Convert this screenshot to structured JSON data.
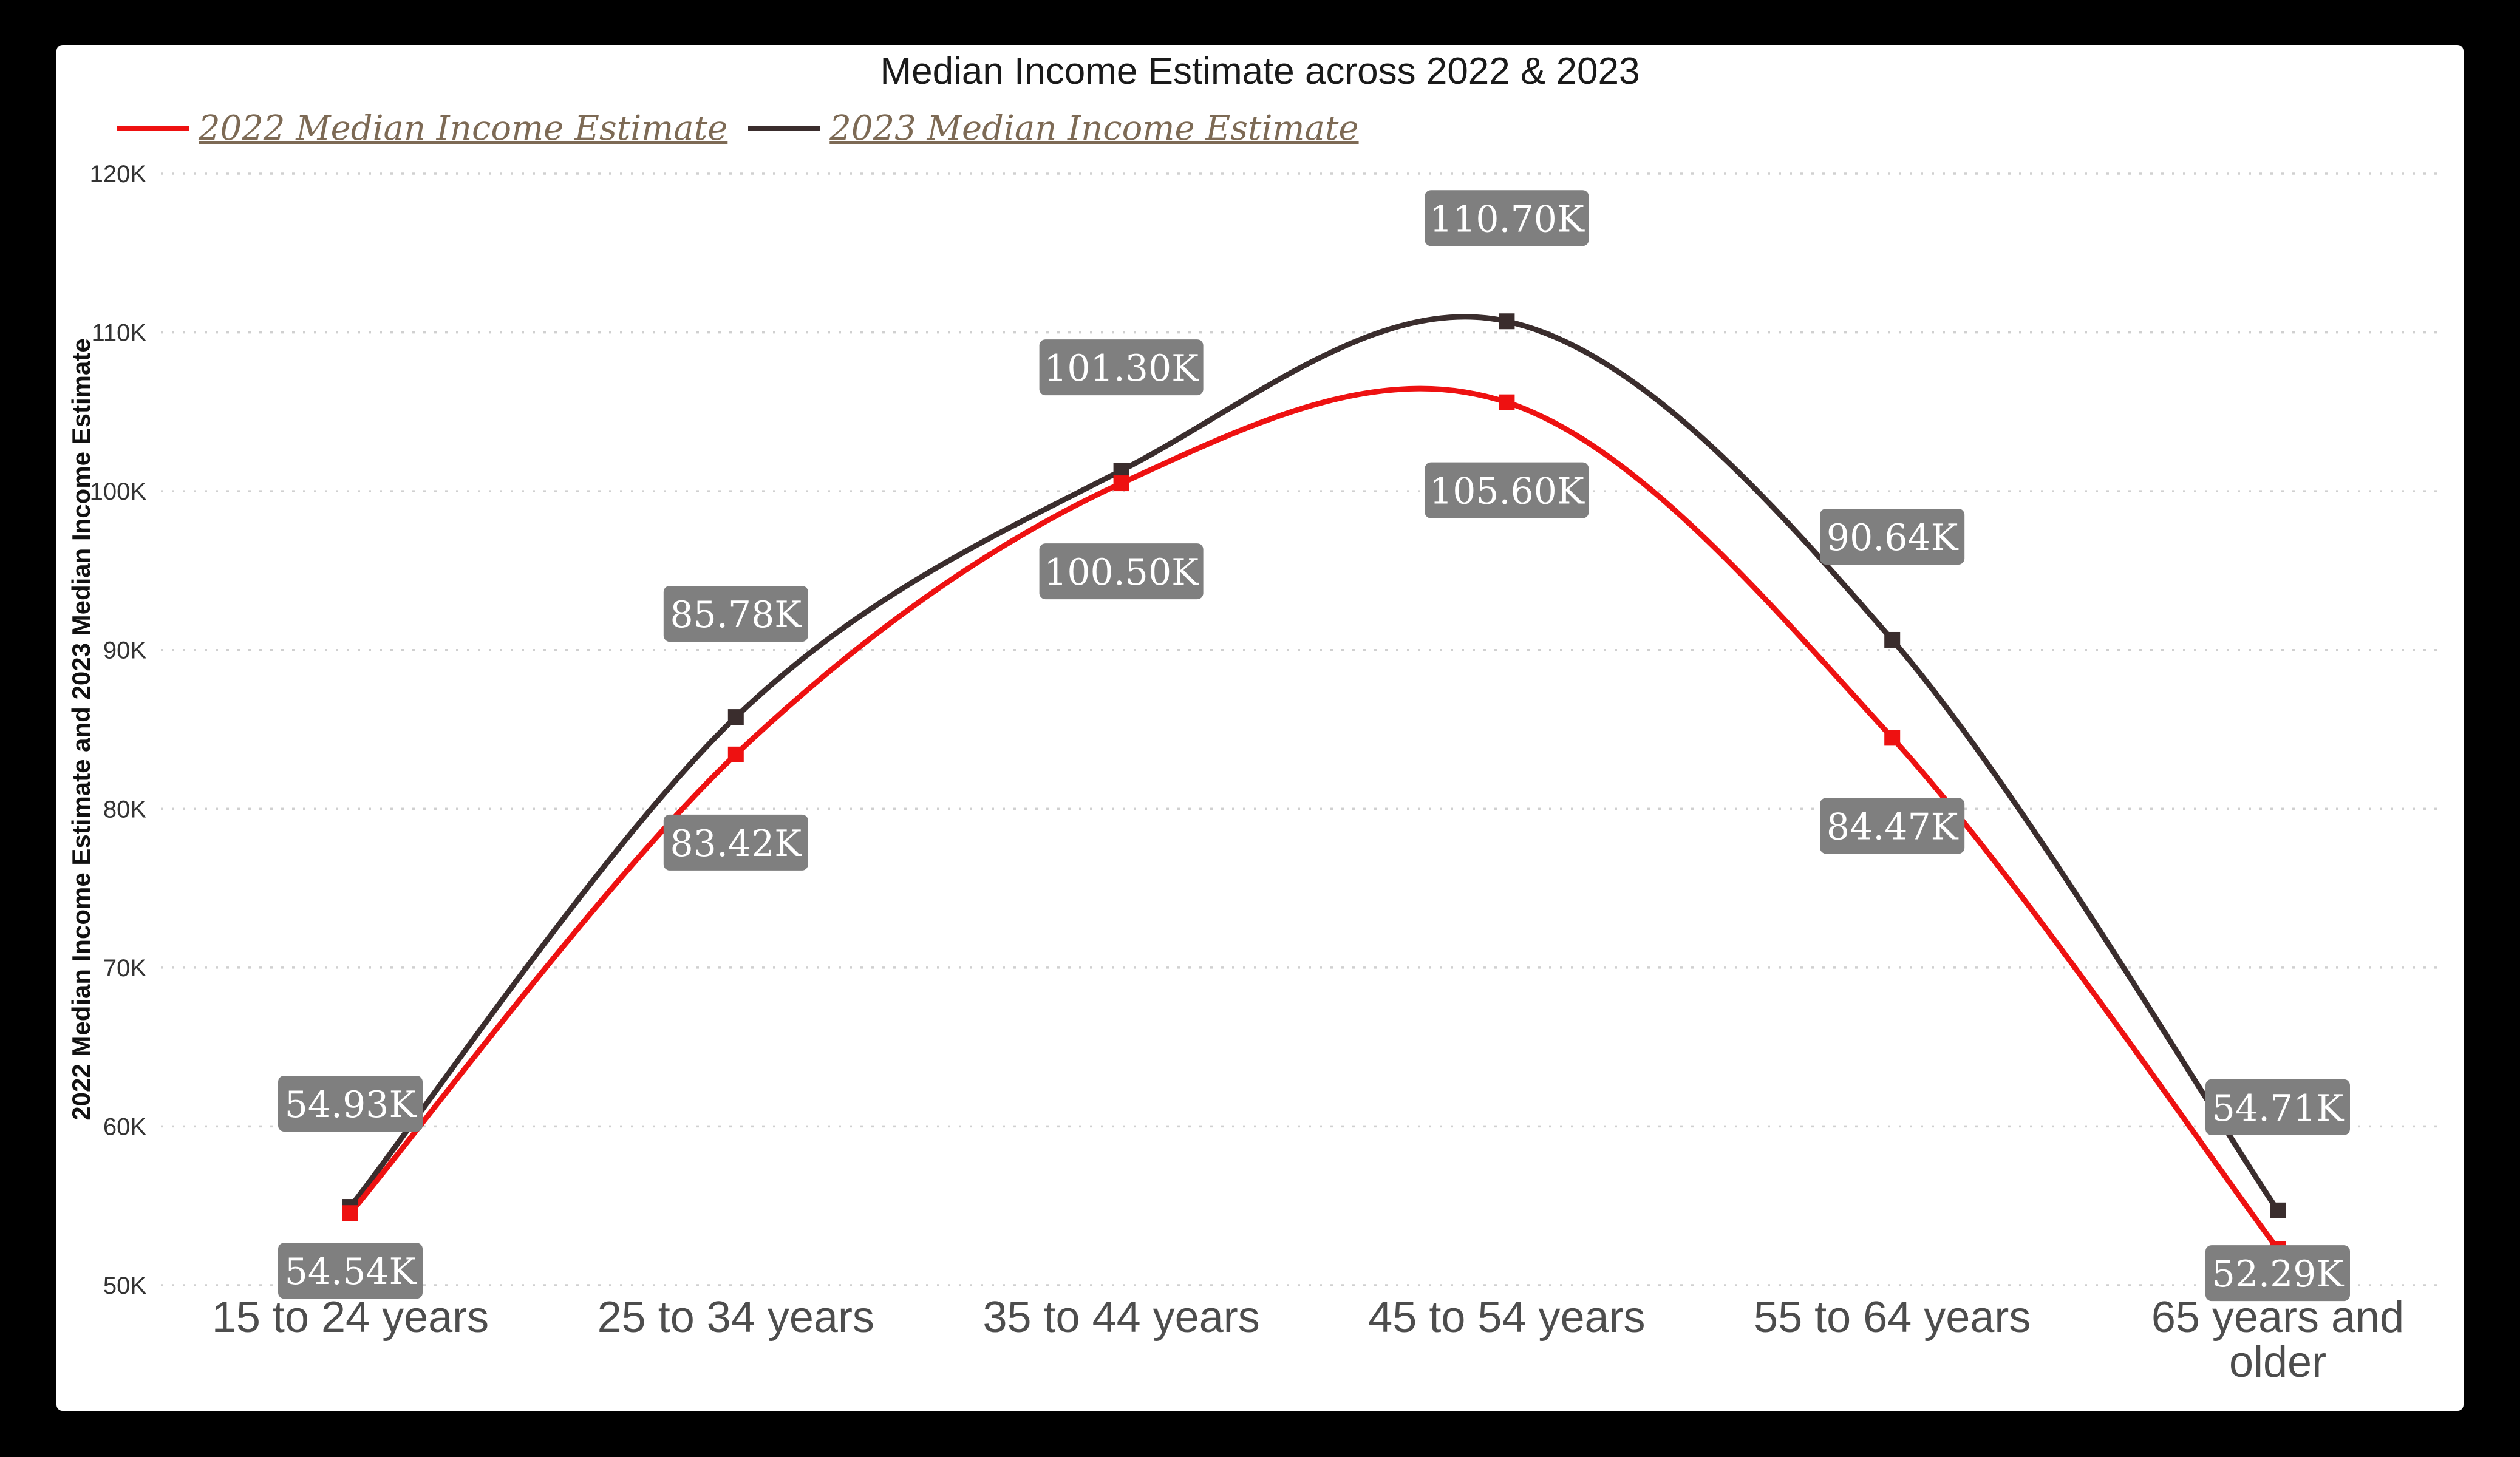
{
  "title": "Median Income Estimate across 2022 & 2023",
  "y_axis_label": "2022 Median Income Estimate and 2023 Median Income Estimate",
  "legend": [
    {
      "label": "2022 Median Income Estimate"
    },
    {
      "label": "2023 Median Income Estimate"
    }
  ],
  "colors": {
    "grid": "#d0d0d0",
    "axis_tick_text": "#333333",
    "x_label_text": "#4d4d4d",
    "y_axis_label_text": "#111111",
    "badge_bg": "#7f7f7f",
    "badge_text": "#ffffff",
    "legend_text": "#7d6a55",
    "title_text": "#1a1a1a"
  },
  "chart_data": {
    "type": "line",
    "title": "Median Income Estimate across 2022 & 2023",
    "xlabel": "",
    "ylabel": "2022 Median Income Estimate and 2023 Median Income Estimate",
    "categories": [
      "15 to 24 years",
      "25 to 34 years",
      "35 to 44 years",
      "45 to 54 years",
      "55 to 64 years",
      "65 years and older"
    ],
    "series": [
      {
        "name": "2022 Median Income Estimate",
        "color": "#ee1111",
        "values": [
          54.54,
          83.42,
          100.5,
          105.6,
          84.47,
          52.29
        ],
        "labels": [
          "54.54K",
          "83.42K",
          "100.50K",
          "105.60K",
          "84.47K",
          "52.29K"
        ],
        "label_position": "below"
      },
      {
        "name": "2023 Median Income Estimate",
        "color": "#3a2d2d",
        "values": [
          54.93,
          85.78,
          101.3,
          110.7,
          90.64,
          54.71
        ],
        "labels": [
          "54.93K",
          "85.78K",
          "101.30K",
          "110.70K",
          "90.64K",
          "54.71K"
        ],
        "label_position": "above"
      }
    ],
    "units": "K (thousands USD)",
    "ylim": [
      50,
      120
    ],
    "yticks": [
      {
        "v": 50,
        "label": "50K"
      },
      {
        "v": 60,
        "label": "60K"
      },
      {
        "v": 70,
        "label": "70K"
      },
      {
        "v": 80,
        "label": "80K"
      },
      {
        "v": 90,
        "label": "90K"
      },
      {
        "v": 100,
        "label": "100K"
      },
      {
        "v": 110,
        "label": "110K"
      },
      {
        "v": 120,
        "label": "120K"
      }
    ],
    "grid": true,
    "grid_style": "dotted",
    "legend_position": "top-left"
  }
}
